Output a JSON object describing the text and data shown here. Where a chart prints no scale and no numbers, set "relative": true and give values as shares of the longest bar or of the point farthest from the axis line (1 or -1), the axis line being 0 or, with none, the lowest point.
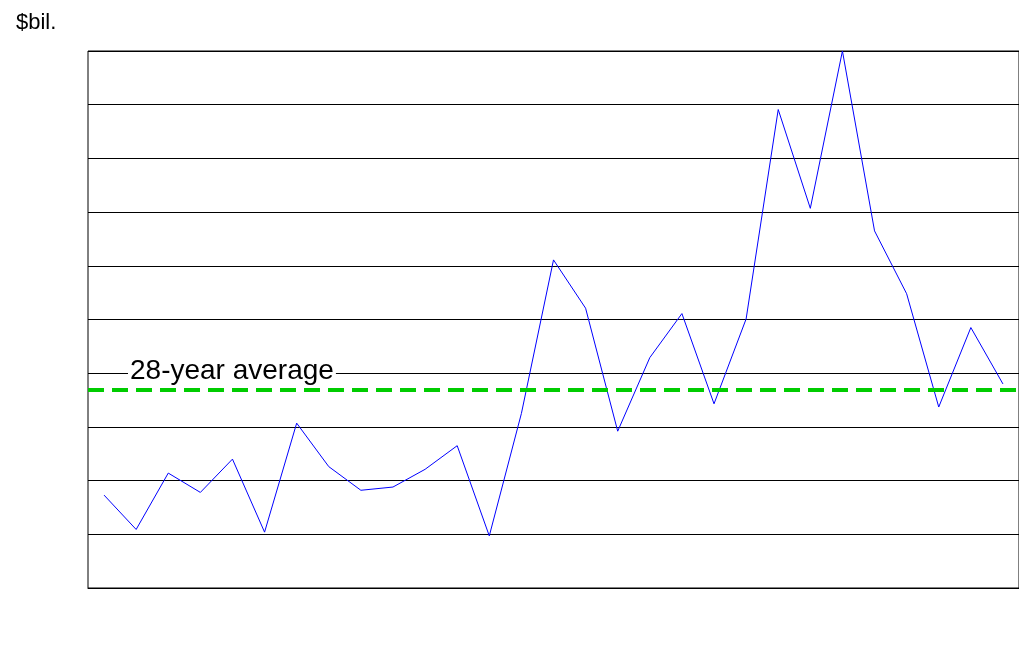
{
  "chart_data": {
    "type": "line",
    "ylabel": "$bil.",
    "relative": true,
    "grid": "y",
    "marker": "none",
    "line_style": "solid",
    "categories": [
      null,
      null,
      null,
      null,
      null,
      null,
      null,
      null,
      null,
      null,
      null,
      null,
      null,
      null,
      null,
      null,
      null,
      null,
      null,
      null,
      null,
      null,
      null,
      null,
      null,
      null,
      null,
      null,
      null
    ],
    "series": [
      {
        "color": "#0000ff",
        "values": [
          0.173,
          0.109,
          0.214,
          0.178,
          0.24,
          0.104,
          0.307,
          0.226,
          0.182,
          0.188,
          0.221,
          0.265,
          0.097,
          0.325,
          0.611,
          0.521,
          0.292,
          0.429,
          0.511,
          0.343,
          0.501,
          0.891,
          0.707,
          1,
          0.665,
          0.548,
          0.337,
          0.485,
          0.38
        ]
      }
    ],
    "ref_lines": [
      {
        "axis": "y",
        "value": 0.369,
        "label": "28-year average",
        "color": "#00cc00",
        "line_style": "dashed"
      }
    ]
  }
}
